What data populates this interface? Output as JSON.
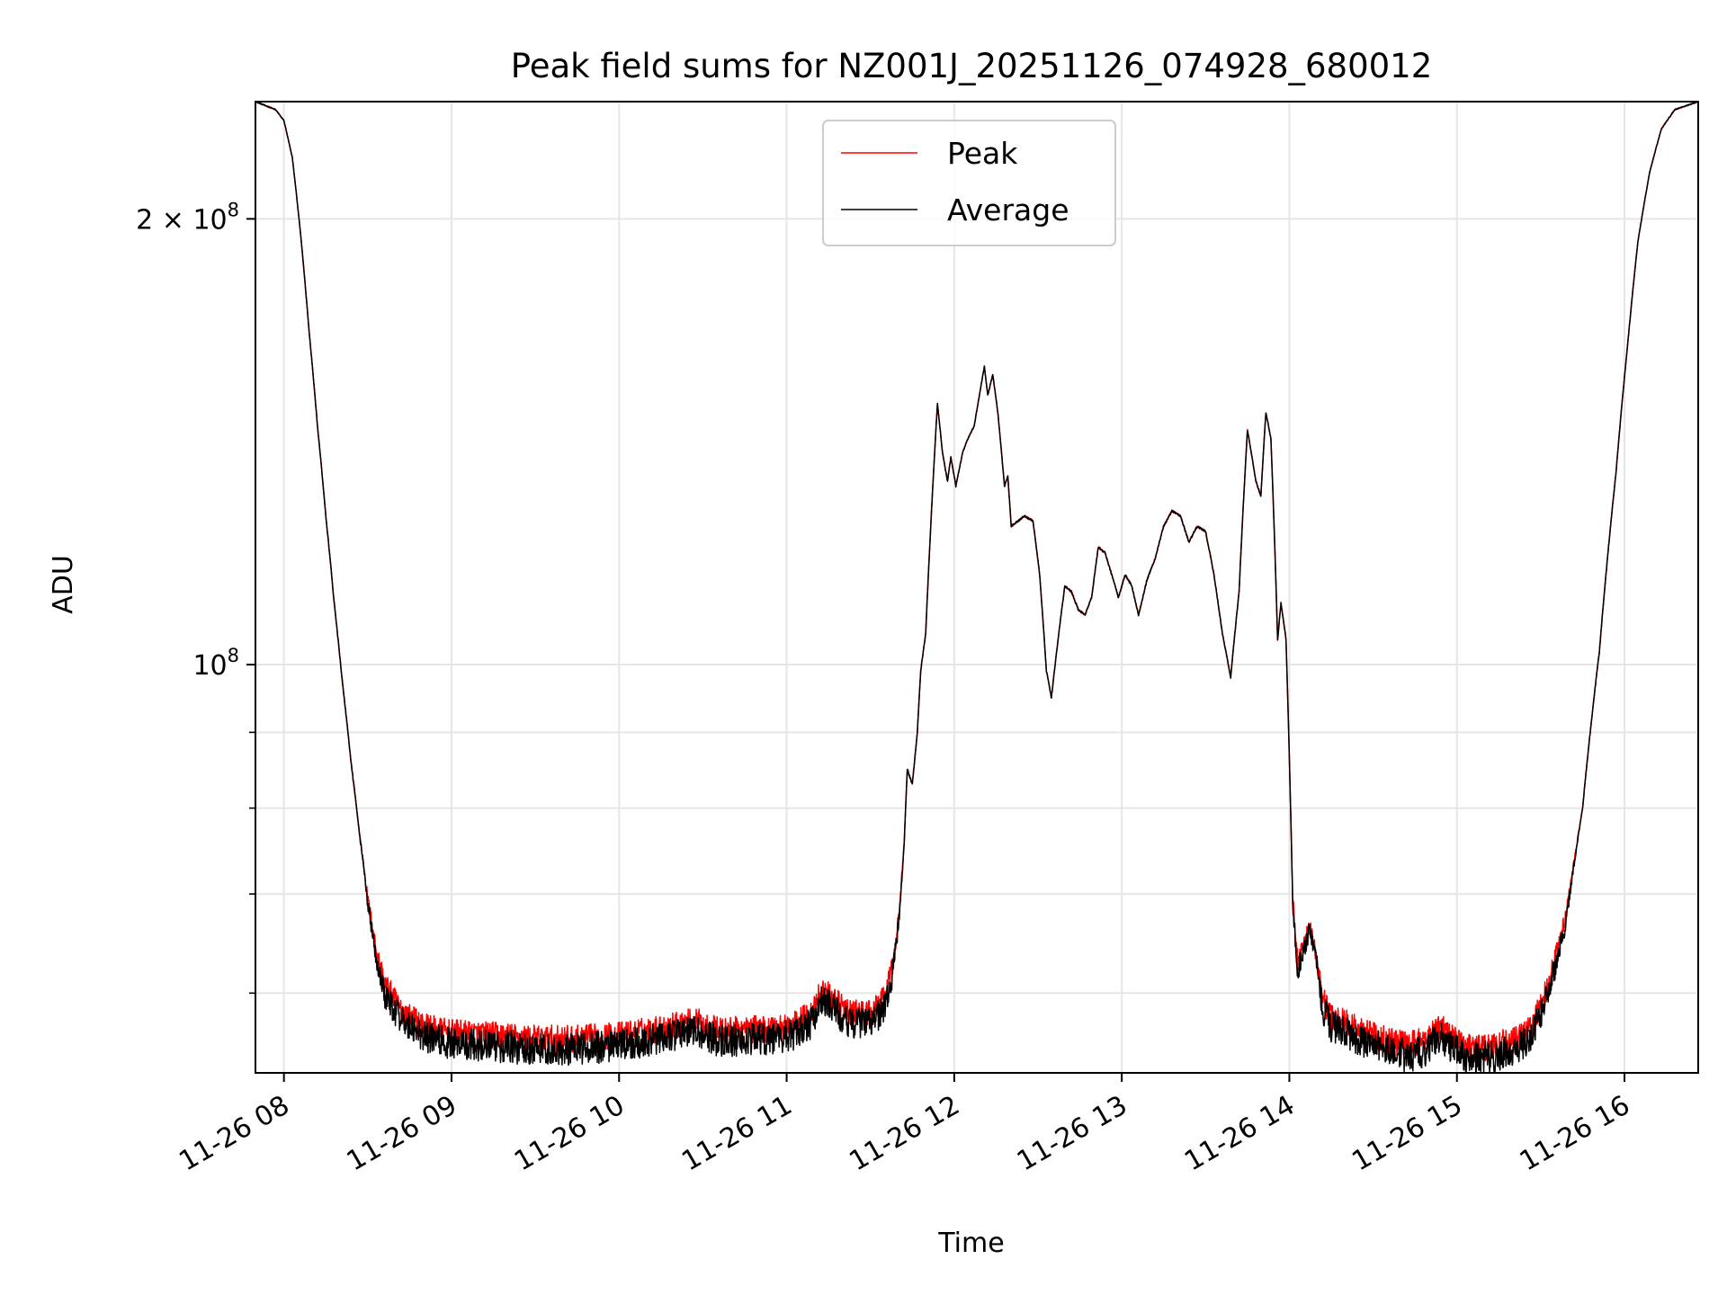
{
  "chart_data": {
    "type": "line",
    "title": "Peak field sums for NZ001J_20251126_074928_680012",
    "xlabel": "Time",
    "ylabel": "ADU",
    "yscale": "log",
    "ylim": [
      53000000,
      240000000
    ],
    "xlim_hours": [
      7.83,
      16.44
    ],
    "grid": true,
    "legend_position": "top-center",
    "x_ticks": [
      {
        "hour": 8,
        "label": "11-26 08"
      },
      {
        "hour": 9,
        "label": "11-26 09"
      },
      {
        "hour": 10,
        "label": "11-26 10"
      },
      {
        "hour": 11,
        "label": "11-26 11"
      },
      {
        "hour": 12,
        "label": "11-26 12"
      },
      {
        "hour": 13,
        "label": "11-26 13"
      },
      {
        "hour": 14,
        "label": "11-26 14"
      },
      {
        "hour": 15,
        "label": "11-26 15"
      },
      {
        "hour": 16,
        "label": "11-26 16"
      }
    ],
    "y_major_ticks": [
      {
        "value": 100000000,
        "base": "10",
        "exp": "8"
      },
      {
        "value": 200000000,
        "prefix": "2 × ",
        "base": "10",
        "exp": "8"
      }
    ],
    "y_minor_ticks": [
      60000000,
      70000000,
      80000000,
      90000000
    ],
    "series": [
      {
        "name": "Peak",
        "color": "#ff0000",
        "noise_m": 1.2,
        "offset_m": 0.9,
        "points": [
          [
            7.83,
            240
          ],
          [
            7.95,
            237
          ],
          [
            8.0,
            233
          ],
          [
            8.05,
            220
          ],
          [
            8.1,
            195
          ],
          [
            8.15,
            168
          ],
          [
            8.2,
            145
          ],
          [
            8.25,
            126
          ],
          [
            8.3,
            110
          ],
          [
            8.35,
            97
          ],
          [
            8.4,
            86
          ],
          [
            8.45,
            77
          ],
          [
            8.5,
            69
          ],
          [
            8.55,
            63.5
          ],
          [
            8.6,
            60
          ],
          [
            8.7,
            57.5
          ],
          [
            8.8,
            56.4
          ],
          [
            8.9,
            55.8
          ],
          [
            9.0,
            55.5
          ],
          [
            9.25,
            55.3
          ],
          [
            9.5,
            55.0
          ],
          [
            9.75,
            55.0
          ],
          [
            10.0,
            55.3
          ],
          [
            10.25,
            55.9
          ],
          [
            10.45,
            56.6
          ],
          [
            10.6,
            55.7
          ],
          [
            10.9,
            55.9
          ],
          [
            11.05,
            56.3
          ],
          [
            11.15,
            57.3
          ],
          [
            11.2,
            59.3
          ],
          [
            11.27,
            58.8
          ],
          [
            11.35,
            57.4
          ],
          [
            11.5,
            57.2
          ],
          [
            11.58,
            58.5
          ],
          [
            11.63,
            61.5
          ],
          [
            11.67,
            67
          ],
          [
            11.7,
            75
          ],
          [
            11.72,
            85
          ],
          [
            11.75,
            83
          ],
          [
            11.78,
            90
          ],
          [
            11.8,
            99
          ],
          [
            11.83,
            105
          ],
          [
            11.86,
            124
          ],
          [
            11.9,
            150
          ],
          [
            11.93,
            139
          ],
          [
            11.96,
            133
          ],
          [
            11.98,
            138
          ],
          [
            12.01,
            132
          ],
          [
            12.05,
            139
          ],
          [
            12.08,
            142
          ],
          [
            12.12,
            145
          ],
          [
            12.15,
            152
          ],
          [
            12.18,
            159
          ],
          [
            12.2,
            152
          ],
          [
            12.23,
            157
          ],
          [
            12.26,
            148
          ],
          [
            12.3,
            132
          ],
          [
            12.32,
            134
          ],
          [
            12.34,
            124
          ],
          [
            12.38,
            125
          ],
          [
            12.42,
            126
          ],
          [
            12.47,
            125
          ],
          [
            12.51,
            115
          ],
          [
            12.55,
            99
          ],
          [
            12.58,
            95
          ],
          [
            12.62,
            104
          ],
          [
            12.66,
            113
          ],
          [
            12.7,
            112
          ],
          [
            12.74,
            109
          ],
          [
            12.78,
            108
          ],
          [
            12.82,
            111
          ],
          [
            12.86,
            120
          ],
          [
            12.9,
            119
          ],
          [
            12.94,
            115
          ],
          [
            12.98,
            111
          ],
          [
            13.02,
            115
          ],
          [
            13.06,
            113
          ],
          [
            13.1,
            108
          ],
          [
            13.15,
            114
          ],
          [
            13.2,
            118
          ],
          [
            13.25,
            124
          ],
          [
            13.3,
            127
          ],
          [
            13.35,
            126
          ],
          [
            13.4,
            121
          ],
          [
            13.45,
            124
          ],
          [
            13.5,
            123
          ],
          [
            13.55,
            115
          ],
          [
            13.6,
            105
          ],
          [
            13.65,
            98
          ],
          [
            13.7,
            112
          ],
          [
            13.75,
            144
          ],
          [
            13.8,
            133
          ],
          [
            13.83,
            130
          ],
          [
            13.86,
            148
          ],
          [
            13.89,
            142
          ],
          [
            13.93,
            104
          ],
          [
            13.95,
            110
          ],
          [
            13.98,
            104
          ],
          [
            14.02,
            69
          ],
          [
            14.05,
            62
          ],
          [
            14.08,
            64
          ],
          [
            14.12,
            66
          ],
          [
            14.16,
            63
          ],
          [
            14.2,
            58.5
          ],
          [
            14.25,
            57
          ],
          [
            14.35,
            56.3
          ],
          [
            14.45,
            55.6
          ],
          [
            14.55,
            55.1
          ],
          [
            14.7,
            54.4
          ],
          [
            14.8,
            54.8
          ],
          [
            14.9,
            56.2
          ],
          [
            14.95,
            55.4
          ],
          [
            15.05,
            54.3
          ],
          [
            15.2,
            54.3
          ],
          [
            15.35,
            54.9
          ],
          [
            15.45,
            56.3
          ],
          [
            15.55,
            60
          ],
          [
            15.65,
            67
          ],
          [
            15.75,
            80
          ],
          [
            15.85,
            102
          ],
          [
            15.95,
            135
          ],
          [
            16.02,
            165
          ],
          [
            16.08,
            193
          ],
          [
            16.15,
            215
          ],
          [
            16.22,
            230
          ],
          [
            16.3,
            237
          ],
          [
            16.44,
            240
          ]
        ]
      },
      {
        "name": "Average",
        "color": "#000000",
        "noise_m": 1.4,
        "offset_m": 0.0,
        "points": [
          [
            7.83,
            240
          ],
          [
            7.95,
            237
          ],
          [
            8.0,
            233
          ],
          [
            8.05,
            220
          ],
          [
            8.1,
            195
          ],
          [
            8.15,
            168
          ],
          [
            8.2,
            145
          ],
          [
            8.25,
            126
          ],
          [
            8.3,
            110
          ],
          [
            8.35,
            97
          ],
          [
            8.4,
            86
          ],
          [
            8.45,
            77
          ],
          [
            8.5,
            69
          ],
          [
            8.55,
            63.5
          ],
          [
            8.6,
            60
          ],
          [
            8.7,
            57.5
          ],
          [
            8.8,
            56.4
          ],
          [
            8.9,
            55.8
          ],
          [
            9.0,
            55.5
          ],
          [
            9.25,
            55.3
          ],
          [
            9.5,
            55.0
          ],
          [
            9.75,
            55.0
          ],
          [
            10.0,
            55.3
          ],
          [
            10.25,
            55.9
          ],
          [
            10.45,
            56.6
          ],
          [
            10.6,
            55.7
          ],
          [
            10.9,
            55.9
          ],
          [
            11.05,
            56.3
          ],
          [
            11.15,
            57.3
          ],
          [
            11.2,
            59.3
          ],
          [
            11.27,
            58.8
          ],
          [
            11.35,
            57.4
          ],
          [
            11.5,
            57.2
          ],
          [
            11.58,
            58.5
          ],
          [
            11.63,
            61.5
          ],
          [
            11.67,
            67
          ],
          [
            11.7,
            75
          ],
          [
            11.72,
            85
          ],
          [
            11.75,
            83
          ],
          [
            11.78,
            90
          ],
          [
            11.8,
            99
          ],
          [
            11.83,
            105
          ],
          [
            11.86,
            124
          ],
          [
            11.9,
            150
          ],
          [
            11.93,
            139
          ],
          [
            11.96,
            133
          ],
          [
            11.98,
            138
          ],
          [
            12.01,
            132
          ],
          [
            12.05,
            139
          ],
          [
            12.08,
            142
          ],
          [
            12.12,
            145
          ],
          [
            12.15,
            152
          ],
          [
            12.18,
            159
          ],
          [
            12.2,
            152
          ],
          [
            12.23,
            157
          ],
          [
            12.26,
            148
          ],
          [
            12.3,
            132
          ],
          [
            12.32,
            134
          ],
          [
            12.34,
            124
          ],
          [
            12.38,
            125
          ],
          [
            12.42,
            126
          ],
          [
            12.47,
            125
          ],
          [
            12.51,
            115
          ],
          [
            12.55,
            99
          ],
          [
            12.58,
            95
          ],
          [
            12.62,
            104
          ],
          [
            12.66,
            113
          ],
          [
            12.7,
            112
          ],
          [
            12.74,
            109
          ],
          [
            12.78,
            108
          ],
          [
            12.82,
            111
          ],
          [
            12.86,
            120
          ],
          [
            12.9,
            119
          ],
          [
            12.94,
            115
          ],
          [
            12.98,
            111
          ],
          [
            13.02,
            115
          ],
          [
            13.06,
            113
          ],
          [
            13.1,
            108
          ],
          [
            13.15,
            114
          ],
          [
            13.2,
            118
          ],
          [
            13.25,
            124
          ],
          [
            13.3,
            127
          ],
          [
            13.35,
            126
          ],
          [
            13.4,
            121
          ],
          [
            13.45,
            124
          ],
          [
            13.5,
            123
          ],
          [
            13.55,
            115
          ],
          [
            13.6,
            105
          ],
          [
            13.65,
            98
          ],
          [
            13.7,
            112
          ],
          [
            13.75,
            144
          ],
          [
            13.8,
            133
          ],
          [
            13.83,
            130
          ],
          [
            13.86,
            148
          ],
          [
            13.89,
            142
          ],
          [
            13.93,
            104
          ],
          [
            13.95,
            110
          ],
          [
            13.98,
            104
          ],
          [
            14.02,
            69
          ],
          [
            14.05,
            62
          ],
          [
            14.08,
            64
          ],
          [
            14.12,
            66
          ],
          [
            14.16,
            63
          ],
          [
            14.2,
            58.5
          ],
          [
            14.25,
            57
          ],
          [
            14.35,
            56.3
          ],
          [
            14.45,
            55.6
          ],
          [
            14.55,
            55.1
          ],
          [
            14.7,
            54.4
          ],
          [
            14.8,
            54.8
          ],
          [
            14.9,
            56.2
          ],
          [
            14.95,
            55.4
          ],
          [
            15.05,
            54.3
          ],
          [
            15.2,
            54.3
          ],
          [
            15.35,
            54.9
          ],
          [
            15.45,
            56.3
          ],
          [
            15.55,
            60
          ],
          [
            15.65,
            67
          ],
          [
            15.75,
            80
          ],
          [
            15.85,
            102
          ],
          [
            15.95,
            135
          ],
          [
            16.02,
            165
          ],
          [
            16.08,
            193
          ],
          [
            16.15,
            215
          ],
          [
            16.22,
            230
          ],
          [
            16.3,
            237
          ],
          [
            16.44,
            240
          ]
        ]
      }
    ]
  }
}
